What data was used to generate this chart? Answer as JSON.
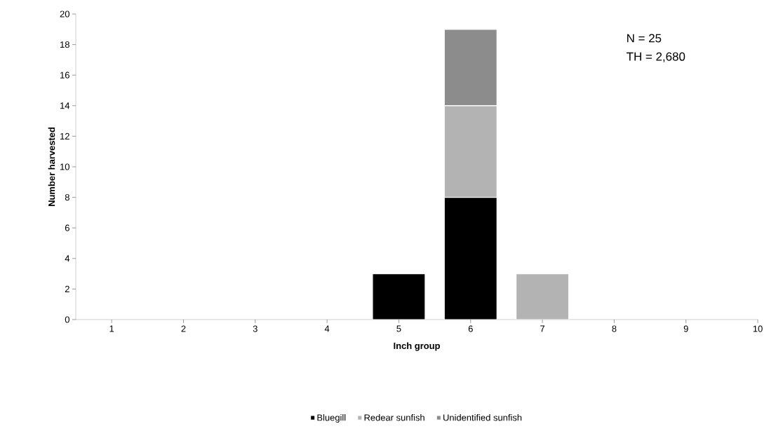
{
  "chart_data": {
    "type": "bar",
    "stacked": true,
    "xlabel": "Inch group",
    "ylabel": "Number harvested",
    "categories": [
      "1",
      "2",
      "3",
      "4",
      "5",
      "6",
      "7",
      "8",
      "9",
      "10"
    ],
    "series": [
      {
        "name": "Bluegill",
        "color": "#000000",
        "values": [
          0,
          0,
          0,
          0,
          3,
          8,
          0,
          0,
          0,
          0
        ]
      },
      {
        "name": "Redear sunfish",
        "color": "#b3b3b3",
        "values": [
          0,
          0,
          0,
          0,
          0,
          6,
          3,
          0,
          0,
          0
        ]
      },
      {
        "name": "Unidentified sunfish",
        "color": "#8c8c8c",
        "values": [
          0,
          0,
          0,
          0,
          0,
          5,
          0,
          0,
          0,
          0
        ]
      }
    ],
    "ylim": [
      0,
      20
    ],
    "yticks": [
      0,
      2,
      4,
      6,
      8,
      10,
      12,
      14,
      16,
      18,
      20
    ],
    "grid": false,
    "legend": "bottom",
    "annotations": [
      "N = 25",
      "TH = 2,680"
    ]
  }
}
